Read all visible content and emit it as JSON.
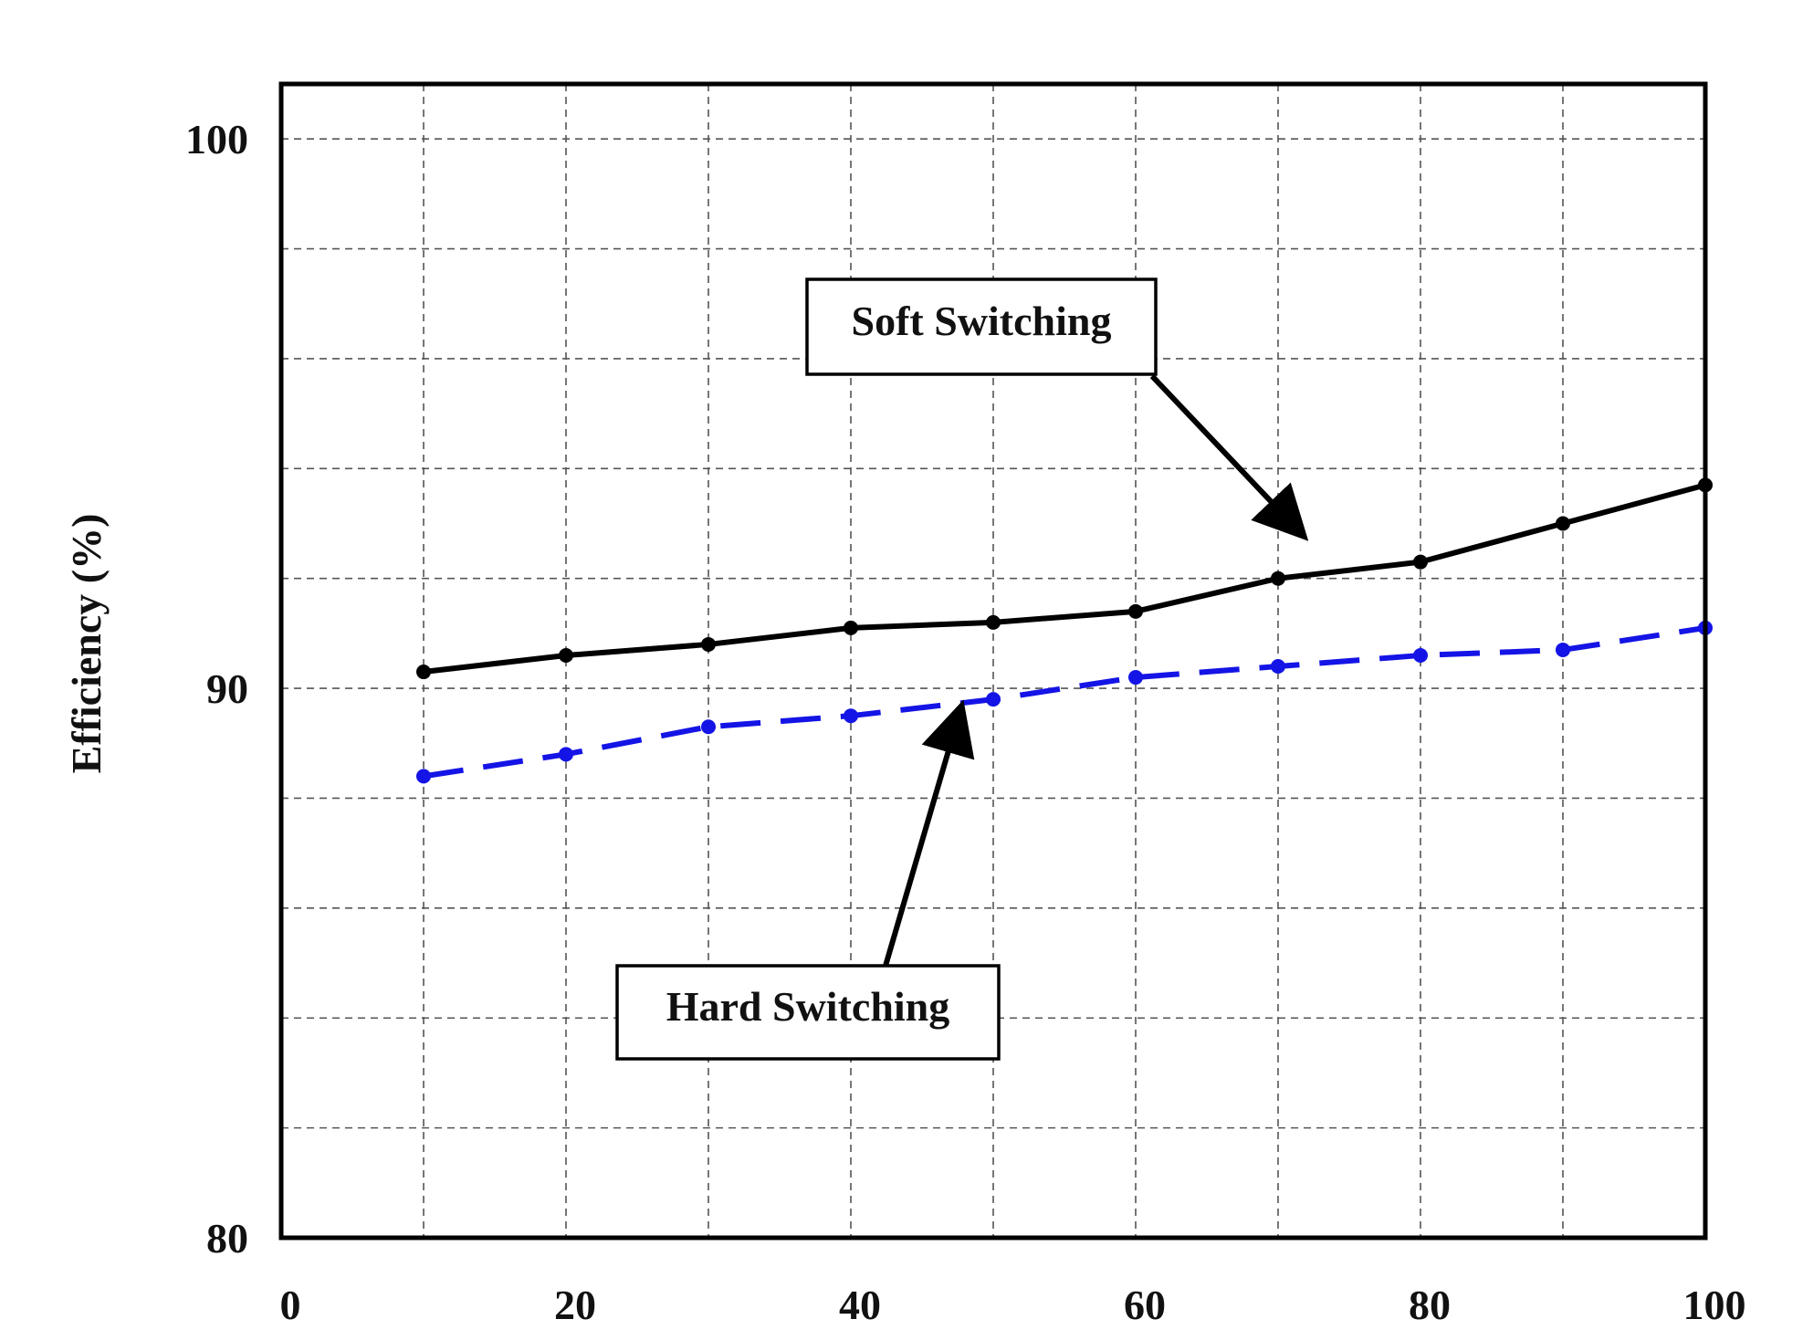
{
  "chart_data": {
    "type": "line",
    "title": "",
    "xlabel": "",
    "ylabel": "Efficiency (%)",
    "xlim": [
      0,
      100
    ],
    "ylim": [
      80,
      101
    ],
    "grid": true,
    "x_ticks": [
      "0",
      "20",
      "40",
      "60",
      "80",
      "100"
    ],
    "y_ticks": [
      "80",
      "90",
      "100"
    ],
    "x_tick_values": [
      0,
      20,
      40,
      60,
      80,
      100
    ],
    "y_tick_values": [
      80,
      90,
      100
    ],
    "series": [
      {
        "name": "Soft Switching",
        "color": "#000000",
        "style": "solid",
        "x": [
          10,
          20,
          30,
          40,
          50,
          60,
          70,
          80,
          90,
          100
        ],
        "y": [
          90.3,
          90.6,
          90.8,
          91.1,
          91.2,
          91.4,
          92.0,
          92.3,
          93.0,
          93.7
        ]
      },
      {
        "name": "Hard Switching",
        "color": "#1414e6",
        "style": "dashed",
        "x": [
          10,
          20,
          30,
          40,
          50,
          60,
          70,
          80,
          90,
          100
        ],
        "y": [
          88.4,
          88.8,
          89.3,
          89.5,
          89.8,
          90.2,
          90.4,
          90.6,
          90.7,
          91.1
        ]
      }
    ],
    "annotations": [
      {
        "text": "Soft Switching",
        "points_to": {
          "x": 72,
          "y": 92.1
        }
      },
      {
        "text": "Hard Switching",
        "points_to": {
          "x": 48,
          "y": 89.2
        }
      }
    ]
  }
}
